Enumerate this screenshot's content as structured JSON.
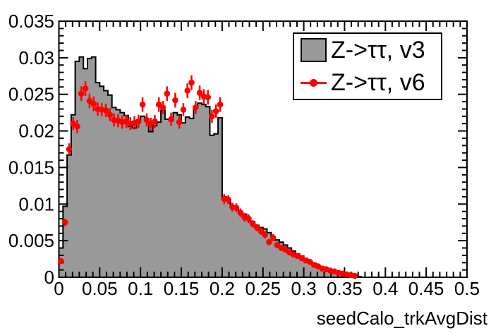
{
  "chart_data": {
    "type": "bar",
    "subtype": "step-histogram-with-points",
    "title": "",
    "xlabel": "seedCalo_trkAvgDist",
    "ylabel": "",
    "xlim": [
      0,
      0.5
    ],
    "ylim": [
      0,
      0.035
    ],
    "grid": false,
    "x_ticks": {
      "values": [
        0,
        0.05,
        0.1,
        0.15,
        0.2,
        0.25,
        0.3,
        0.35,
        0.4,
        0.45,
        0.5
      ],
      "labels": [
        "0",
        "0.05",
        "0.1",
        "0.15",
        "0.2",
        "0.25",
        "0.3",
        "0.35",
        "0.4",
        "0.45",
        "0.5"
      ],
      "minor_divisions_per_major": 6
    },
    "y_ticks": {
      "values": [
        0,
        0.005,
        0.01,
        0.015,
        0.02,
        0.025,
        0.03,
        0.035
      ],
      "labels": [
        "0",
        "0.005",
        "0.01",
        "0.015",
        "0.02",
        "0.025",
        "0.03",
        "0.035"
      ],
      "minor_divisions_per_major": 5
    },
    "legend": {
      "position": "top-right",
      "entries": [
        {
          "label": "Z->ττ, v3",
          "style": "filled-box",
          "fill_color": "#999999",
          "border_color": "#000000"
        },
        {
          "label": "Z->ττ, v6",
          "style": "line-with-marker",
          "color": "#ff0000"
        }
      ]
    },
    "series": [
      {
        "name": "Z->ττ, v3",
        "type": "filled-step-histogram",
        "fill_color": "#999999",
        "line_color": "#000000",
        "bin_start": 0,
        "bin_width": 0.005,
        "values": [
          0.004,
          0.0097,
          0.0167,
          0.0222,
          0.0295,
          0.0301,
          0.0285,
          0.0299,
          0.0301,
          0.0266,
          0.0261,
          0.0255,
          0.0249,
          0.0232,
          0.0229,
          0.0225,
          0.0221,
          0.0206,
          0.0204,
          0.0214,
          0.022,
          0.0215,
          0.0199,
          0.0207,
          0.0212,
          0.0228,
          0.0216,
          0.0214,
          0.0225,
          0.0222,
          0.0211,
          0.0219,
          0.0217,
          0.0231,
          0.0238,
          0.0236,
          0.0233,
          0.0194,
          0.0196,
          0.0218,
          0.011,
          0.0106,
          0.0098,
          0.0095,
          0.009,
          0.0086,
          0.008,
          0.0076,
          0.0071,
          0.0068,
          0.0066,
          0.0061,
          0.0054,
          0.0051,
          0.0048,
          0.0044,
          0.004,
          0.0036,
          0.0032,
          0.0029,
          0.0025,
          0.0022,
          0.0019,
          0.0016,
          0.0014,
          0.0012,
          0.001,
          0.0008,
          0.0007,
          0.0005,
          0.0004,
          0.0003,
          0.0002,
          0.0001
        ]
      },
      {
        "name": "Z->ττ, v6",
        "type": "points-with-error-bars",
        "color": "#ff0000",
        "x": [
          0.0025,
          0.0075,
          0.0125,
          0.0175,
          0.0225,
          0.0275,
          0.0325,
          0.0375,
          0.0425,
          0.0475,
          0.0525,
          0.0575,
          0.0625,
          0.0675,
          0.0725,
          0.0775,
          0.0825,
          0.0875,
          0.0925,
          0.0975,
          0.1025,
          0.1075,
          0.1125,
          0.1175,
          0.1225,
          0.1275,
          0.1325,
          0.1375,
          0.1425,
          0.1475,
          0.1525,
          0.1575,
          0.1625,
          0.1675,
          0.1725,
          0.1775,
          0.1825,
          0.1875,
          0.1925,
          0.1975,
          0.2025,
          0.2075,
          0.2125,
          0.2175,
          0.2225,
          0.2275,
          0.2325,
          0.2375,
          0.2425,
          0.2475,
          0.2525,
          0.2575,
          0.2625,
          0.2675,
          0.2725,
          0.2775,
          0.2825,
          0.2875,
          0.2925,
          0.2975,
          0.3025,
          0.3075,
          0.3125,
          0.3175,
          0.3225,
          0.3275,
          0.3325,
          0.3375,
          0.3425,
          0.3475,
          0.3525,
          0.3575,
          0.3625
        ],
        "y": [
          0.0022,
          0.0075,
          0.0175,
          0.021,
          0.0206,
          0.0251,
          0.0258,
          0.0241,
          0.0237,
          0.023,
          0.0229,
          0.0228,
          0.0222,
          0.0215,
          0.0214,
          0.0212,
          0.0213,
          0.021,
          0.0211,
          0.0213,
          0.0236,
          0.0215,
          0.0209,
          0.0213,
          0.0236,
          0.0232,
          0.0251,
          0.0216,
          0.0242,
          0.0212,
          0.0229,
          0.0255,
          0.0266,
          0.0232,
          0.0252,
          0.0247,
          0.0246,
          0.022,
          0.0227,
          0.0236,
          0.0107,
          0.0106,
          0.0096,
          0.0095,
          0.0088,
          0.0082,
          0.008,
          0.0073,
          0.0068,
          0.0063,
          0.0058,
          0.0048,
          0.0054,
          0.0044,
          0.004,
          0.0038,
          0.0034,
          0.0031,
          0.0029,
          0.0026,
          0.0023,
          0.0021,
          0.0017,
          0.0015,
          0.0012,
          0.0011,
          0.0009,
          0.0008,
          0.0006,
          0.0005,
          0.0004,
          0.0003,
          0.0002
        ],
        "yerr": [
          0.0003,
          0.0005,
          0.0008,
          0.0009,
          0.0009,
          0.001,
          0.001,
          0.001,
          0.001,
          0.0009,
          0.0009,
          0.0009,
          0.0009,
          0.0009,
          0.0009,
          0.0009,
          0.0009,
          0.0009,
          0.0009,
          0.0009,
          0.001,
          0.0009,
          0.0009,
          0.0009,
          0.001,
          0.0009,
          0.001,
          0.0009,
          0.001,
          0.0009,
          0.0009,
          0.001,
          0.001,
          0.0009,
          0.001,
          0.001,
          0.001,
          0.0009,
          0.0009,
          0.001,
          0.0007,
          0.0006,
          0.0006,
          0.0006,
          0.0006,
          0.0006,
          0.0006,
          0.0005,
          0.0005,
          0.0005,
          0.0005,
          0.0004,
          0.0005,
          0.0004,
          0.0004,
          0.0004,
          0.0004,
          0.0004,
          0.0003,
          0.0003,
          0.0003,
          0.0003,
          0.0003,
          0.0002,
          0.0002,
          0.0002,
          0.0002,
          0.0002,
          0.0002,
          0.0002,
          0.0002,
          0.0002,
          0.0002
        ]
      }
    ]
  }
}
